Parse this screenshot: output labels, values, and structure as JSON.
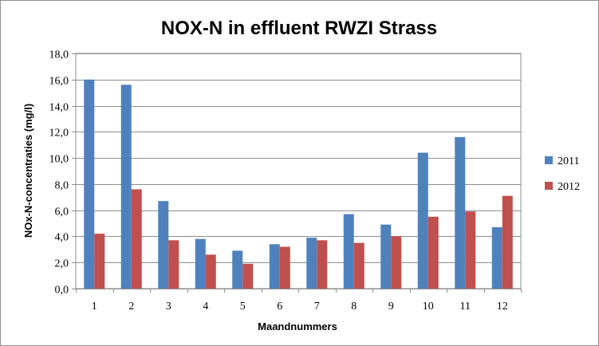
{
  "chart_data": {
    "type": "bar",
    "title": "NOX-N in effluent RWZI Strass",
    "xlabel": "Maandnummers",
    "ylabel": "NOx-N-concentraties (mg/l)",
    "categories": [
      "1",
      "2",
      "3",
      "4",
      "5",
      "6",
      "7",
      "8",
      "9",
      "10",
      "11",
      "12"
    ],
    "ylim": [
      0,
      18
    ],
    "yticks": [
      "0,0",
      "2,0",
      "4,0",
      "6,0",
      "8,0",
      "10,0",
      "12,0",
      "14,0",
      "16,0",
      "18,0"
    ],
    "grid": true,
    "legend_position": "right",
    "series": [
      {
        "name": "2011",
        "color": "#4f81bd",
        "values": [
          16.0,
          15.6,
          6.7,
          3.8,
          2.9,
          3.4,
          3.9,
          5.7,
          4.9,
          10.4,
          11.6,
          4.7
        ]
      },
      {
        "name": "2012",
        "color": "#c0504d",
        "values": [
          4.2,
          7.6,
          3.7,
          2.6,
          1.9,
          3.2,
          3.7,
          3.5,
          4.0,
          5.5,
          5.9,
          7.1
        ]
      }
    ]
  }
}
